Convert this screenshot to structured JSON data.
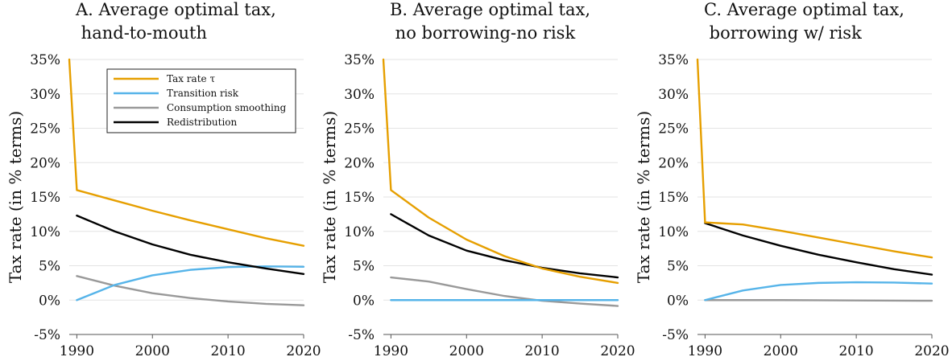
{
  "chart_data": [
    {
      "type": "line",
      "title_lines": [
        "A. Average optimal tax,",
        " hand-to-mouth"
      ],
      "xlabel": "",
      "ylabel": "Tax rate (in % terms)",
      "xlim": [
        1989,
        2020
      ],
      "ylim": [
        -5,
        35
      ],
      "xticks": [
        1990,
        2000,
        2010,
        2020
      ],
      "yticks": [
        -5,
        0,
        5,
        10,
        15,
        20,
        25,
        30,
        35
      ],
      "ytick_labels": [
        "-5%",
        "0%",
        "5%",
        "10%",
        "15%",
        "20%",
        "25%",
        "30%",
        "35%"
      ],
      "grid": "horizontal",
      "legend": {
        "position": "top-right",
        "entries": [
          "Tax rate τ",
          "Transition risk",
          "Consumption smoothing",
          "Redistribution"
        ]
      },
      "series": [
        {
          "name": "Tax rate τ",
          "color": "#e69f00",
          "x": [
            1989,
            1990,
            1995,
            2000,
            2005,
            2010,
            2015,
            2020
          ],
          "y": [
            35,
            16,
            14.5,
            13,
            11.6,
            10.3,
            9.0,
            7.9
          ]
        },
        {
          "name": "Transition risk",
          "color": "#56b4e9",
          "x": [
            1990,
            1995,
            2000,
            2005,
            2010,
            2015,
            2020
          ],
          "y": [
            0,
            2.2,
            3.6,
            4.4,
            4.8,
            4.9,
            4.85
          ]
        },
        {
          "name": "Consumption smoothing",
          "color": "#999999",
          "x": [
            1990,
            1995,
            2000,
            2005,
            2010,
            2015,
            2020
          ],
          "y": [
            3.5,
            2.1,
            1.0,
            0.3,
            -0.2,
            -0.55,
            -0.75
          ]
        },
        {
          "name": "Redistribution",
          "color": "#000000",
          "x": [
            1990,
            1995,
            2000,
            2005,
            2010,
            2015,
            2020
          ],
          "y": [
            12.3,
            10.0,
            8.1,
            6.6,
            5.5,
            4.6,
            3.8
          ]
        }
      ]
    },
    {
      "type": "line",
      "title_lines": [
        "B. Average optimal tax,",
        " no borrowing-no risk"
      ],
      "xlabel": "",
      "ylabel": "Tax rate (in % terms)",
      "xlim": [
        1989,
        2020
      ],
      "ylim": [
        -5,
        35
      ],
      "xticks": [
        1990,
        2000,
        2010,
        2020
      ],
      "yticks": [
        -5,
        0,
        5,
        10,
        15,
        20,
        25,
        30,
        35
      ],
      "ytick_labels": [
        "-5%",
        "0%",
        "5%",
        "10%",
        "15%",
        "20%",
        "25%",
        "30%",
        "35%"
      ],
      "grid": "horizontal",
      "legend": null,
      "series": [
        {
          "name": "Tax rate τ",
          "color": "#e69f00",
          "x": [
            1989,
            1990,
            1995,
            2000,
            2005,
            2010,
            2015,
            2020
          ],
          "y": [
            35,
            16,
            12,
            8.8,
            6.4,
            4.6,
            3.4,
            2.5
          ]
        },
        {
          "name": "Transition risk",
          "color": "#56b4e9",
          "x": [
            1990,
            2020
          ],
          "y": [
            0,
            0
          ]
        },
        {
          "name": "Consumption smoothing",
          "color": "#999999",
          "x": [
            1990,
            1995,
            2000,
            2005,
            2010,
            2015,
            2020
          ],
          "y": [
            3.3,
            2.7,
            1.6,
            0.6,
            -0.1,
            -0.5,
            -0.85
          ]
        },
        {
          "name": "Redistribution",
          "color": "#000000",
          "x": [
            1990,
            1995,
            2000,
            2005,
            2010,
            2015,
            2020
          ],
          "y": [
            12.5,
            9.4,
            7.2,
            5.8,
            4.7,
            3.9,
            3.3
          ]
        }
      ]
    },
    {
      "type": "line",
      "title_lines": [
        "C. Average optimal tax,",
        " borrowing w/ risk"
      ],
      "xlabel": "",
      "ylabel": "Tax rate (in % terms)",
      "xlim": [
        1989,
        2020
      ],
      "ylim": [
        -5,
        35
      ],
      "xticks": [
        1990,
        2000,
        2010,
        2020
      ],
      "yticks": [
        -5,
        0,
        5,
        10,
        15,
        20,
        25,
        30,
        35
      ],
      "ytick_labels": [
        "-5%",
        "0%",
        "5%",
        "10%",
        "15%",
        "20%",
        "25%",
        "30%",
        "35%"
      ],
      "grid": "horizontal",
      "legend": null,
      "series": [
        {
          "name": "Tax rate τ",
          "color": "#e69f00",
          "x": [
            1989,
            1990,
            1995,
            2000,
            2005,
            2010,
            2015,
            2020
          ],
          "y": [
            35,
            11.3,
            11.0,
            10.1,
            9.1,
            8.1,
            7.1,
            6.2
          ]
        },
        {
          "name": "Transition risk",
          "color": "#56b4e9",
          "x": [
            1990,
            1995,
            2000,
            2005,
            2010,
            2015,
            2020
          ],
          "y": [
            0,
            1.4,
            2.2,
            2.5,
            2.6,
            2.55,
            2.4
          ]
        },
        {
          "name": "Consumption smoothing",
          "color": "#999999",
          "x": [
            1990,
            2000,
            2010,
            2020
          ],
          "y": [
            0,
            0,
            -0.05,
            -0.1
          ]
        },
        {
          "name": "Redistribution",
          "color": "#000000",
          "x": [
            1990,
            1995,
            2000,
            2005,
            2010,
            2015,
            2020
          ],
          "y": [
            11.2,
            9.4,
            7.9,
            6.6,
            5.5,
            4.5,
            3.7
          ]
        }
      ]
    }
  ]
}
